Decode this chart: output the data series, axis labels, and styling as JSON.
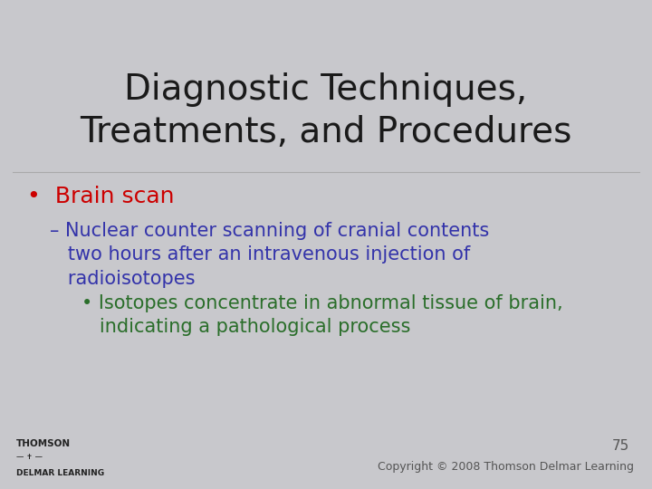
{
  "title_line1": "Diagnostic Techniques,",
  "title_line2": "Treatments, and Procedures",
  "title_color": "#1a1a1a",
  "title_fontsize": 28,
  "background_color": "#c8c8cc",
  "bullet1_text": "Brain scan",
  "bullet1_color": "#cc0000",
  "bullet1_fontsize": 18,
  "dash_text_line1": "– Nuclear counter scanning of cranial contents",
  "dash_text_line2": "   two hours after an intravenous injection of",
  "dash_text_line3": "   radioisotopes",
  "dash_color": "#3333aa",
  "dash_fontsize": 15,
  "sub_bullet_line1": "• Isotopes concentrate in abnormal tissue of brain,",
  "sub_bullet_line2": "   indicating a pathological process",
  "sub_bullet_color": "#2a6e2a",
  "sub_bullet_fontsize": 15,
  "page_number": "75",
  "copyright_text": "Copyright © 2008 Thomson Delmar Learning",
  "footer_color": "#555555",
  "footer_fontsize": 9
}
